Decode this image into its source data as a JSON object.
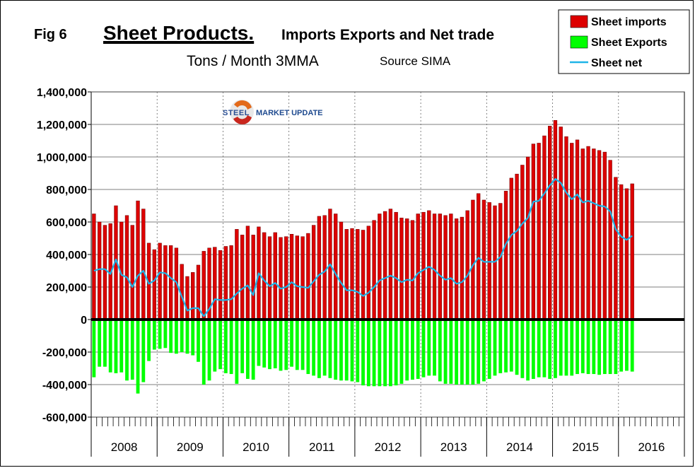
{
  "fig_label": "Fig 6",
  "title_main": "Sheet Products.",
  "title_rest": "Imports Exports and Net trade",
  "subtitle": "Tons / Month 3MMA",
  "source": "Source SIMA",
  "logo": {
    "word1": "STEEL",
    "word2": "MARKET UPDATE"
  },
  "colors": {
    "imports": "#dd0000",
    "exports": "#00ff00",
    "net": "#1fb4e8"
  },
  "chart_data": {
    "type": "bar",
    "legend_position": "top-right",
    "grid": true,
    "ylim": [
      -600000,
      1400000
    ],
    "y_ticks": [
      "1,400,000",
      "1,200,000",
      "1,000,000",
      "800,000",
      "600,000",
      "400,000",
      "200,000",
      "0",
      "-200,000",
      "-400,000",
      "-600,000"
    ],
    "years": [
      "2008",
      "2009",
      "2010",
      "2011",
      "2012",
      "2013",
      "2014",
      "2015",
      "2016"
    ],
    "series": [
      {
        "name": "Sheet imports",
        "kind": "bar",
        "values": [
          650000,
          600000,
          580000,
          590000,
          700000,
          600000,
          640000,
          580000,
          730000,
          680000,
          470000,
          430000,
          470000,
          455000,
          455000,
          440000,
          340000,
          265000,
          290000,
          335000,
          420000,
          440000,
          445000,
          425000,
          450000,
          455000,
          555000,
          520000,
          575000,
          520000,
          570000,
          535000,
          510000,
          535000,
          505000,
          510000,
          525000,
          515000,
          510000,
          530000,
          580000,
          635000,
          640000,
          680000,
          650000,
          600000,
          555000,
          560000,
          555000,
          550000,
          575000,
          610000,
          650000,
          665000,
          680000,
          660000,
          625000,
          620000,
          610000,
          650000,
          660000,
          670000,
          650000,
          650000,
          640000,
          650000,
          620000,
          630000,
          670000,
          735000,
          775000,
          735000,
          720000,
          700000,
          715000,
          790000,
          870000,
          895000,
          950000,
          1000000,
          1080000,
          1085000,
          1130000,
          1190000,
          1225000,
          1185000,
          1125000,
          1085000,
          1105000,
          1050000,
          1065000,
          1050000,
          1040000,
          1030000,
          980000,
          875000,
          830000,
          805000,
          835000
        ]
      },
      {
        "name": "Sheet Exports",
        "kind": "bar",
        "values": [
          -355000,
          -290000,
          -290000,
          -325000,
          -330000,
          -325000,
          -375000,
          -370000,
          -455000,
          -385000,
          -255000,
          -185000,
          -180000,
          -175000,
          -205000,
          -210000,
          -200000,
          -210000,
          -220000,
          -260000,
          -400000,
          -375000,
          -320000,
          -305000,
          -330000,
          -335000,
          -395000,
          -330000,
          -365000,
          -370000,
          -285000,
          -295000,
          -305000,
          -300000,
          -315000,
          -310000,
          -290000,
          -310000,
          -310000,
          -335000,
          -345000,
          -360000,
          -345000,
          -360000,
          -370000,
          -375000,
          -375000,
          -380000,
          -385000,
          -405000,
          -410000,
          -410000,
          -410000,
          -410000,
          -410000,
          -405000,
          -395000,
          -375000,
          -370000,
          -365000,
          -355000,
          -345000,
          -345000,
          -380000,
          -395000,
          -395000,
          -400000,
          -400000,
          -400000,
          -400000,
          -395000,
          -380000,
          -365000,
          -345000,
          -330000,
          -325000,
          -320000,
          -340000,
          -360000,
          -375000,
          -365000,
          -355000,
          -355000,
          -365000,
          -360000,
          -345000,
          -345000,
          -345000,
          -335000,
          -330000,
          -335000,
          -335000,
          -340000,
          -335000,
          -335000,
          -335000,
          -320000,
          -315000,
          -320000
        ]
      },
      {
        "name": "Sheet net",
        "kind": "line",
        "values": [
          300000,
          310000,
          310000,
          280000,
          370000,
          275000,
          260000,
          200000,
          270000,
          300000,
          220000,
          240000,
          290000,
          285000,
          255000,
          230000,
          140000,
          55000,
          70000,
          70000,
          20000,
          65000,
          125000,
          120000,
          120000,
          125000,
          160000,
          190000,
          210000,
          150000,
          285000,
          240000,
          205000,
          225000,
          190000,
          200000,
          230000,
          205000,
          200000,
          195000,
          235000,
          275000,
          295000,
          340000,
          280000,
          225000,
          180000,
          180000,
          170000,
          145000,
          165000,
          200000,
          240000,
          255000,
          270000,
          255000,
          230000,
          245000,
          240000,
          285000,
          305000,
          325000,
          305000,
          270000,
          245000,
          255000,
          220000,
          230000,
          270000,
          335000,
          380000,
          355000,
          355000,
          355000,
          385000,
          465000,
          520000,
          545000,
          590000,
          625000,
          725000,
          730000,
          775000,
          825000,
          865000,
          840000,
          780000,
          740000,
          770000,
          720000,
          730000,
          715000,
          700000,
          695000,
          665000,
          555000,
          510000,
          490000,
          515000
        ]
      }
    ],
    "legend": [
      "Sheet imports",
      "Sheet Exports",
      "Sheet net"
    ]
  }
}
